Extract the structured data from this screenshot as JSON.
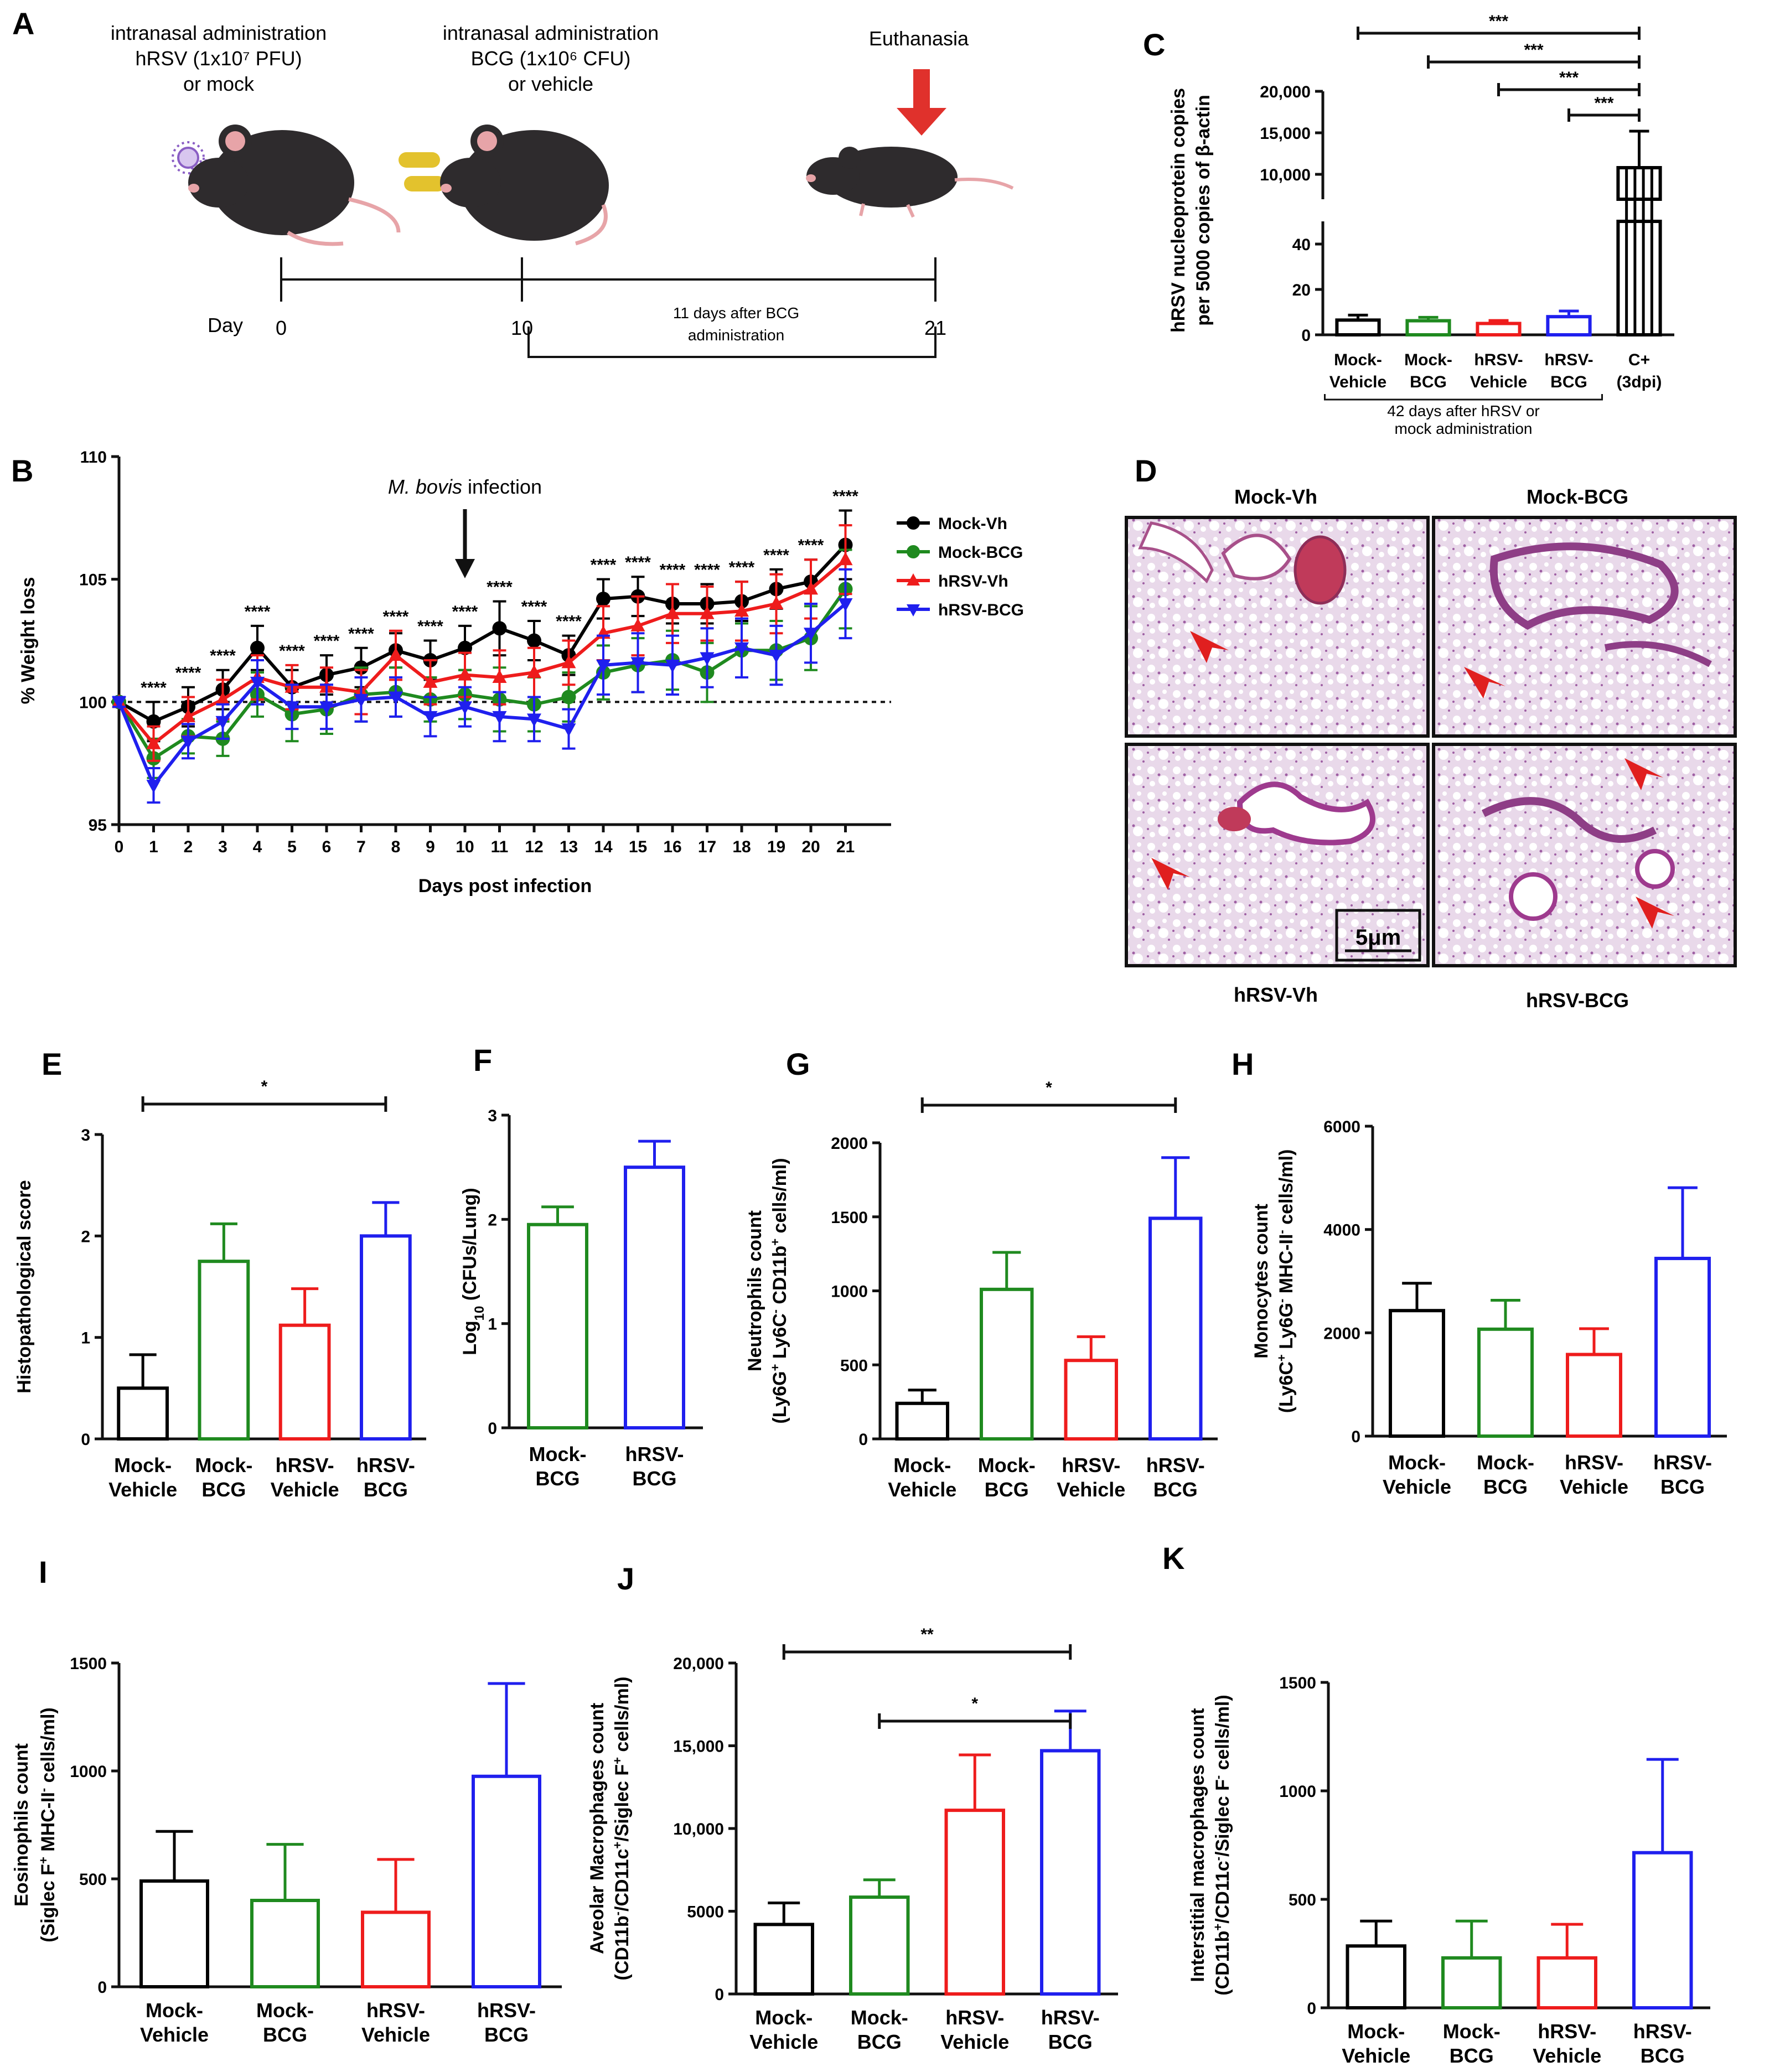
{
  "panel_letters": [
    "A",
    "B",
    "C",
    "D",
    "E",
    "F",
    "G",
    "H",
    "I",
    "J",
    "K"
  ],
  "colors": {
    "Mock-Vh": "#000000",
    "Mock-BCG": "#1f8a1f",
    "hRSV-Vh": "#ee1c1c",
    "hRSV-BCG": "#1f1fee"
  },
  "panel_A": {
    "step1": [
      "intranasal administration",
      "hRSV  (1x10⁷ PFU)",
      "or mock"
    ],
    "step2": [
      "intranasal administration",
      "BCG  (1x10⁶ CFU)",
      "or vehicle"
    ],
    "step3": "Euthanasia",
    "day_label": "Day",
    "days": [
      "0",
      "10",
      "21"
    ],
    "interval": [
      "11 days after BCG",
      "administration"
    ]
  },
  "panel_D": {
    "labels": [
      "Mock-Vh",
      "Mock-BCG",
      "hRSV-Vh",
      "hRSV-BCG"
    ],
    "scale": "5μm"
  },
  "chart_data": [
    {
      "id": "B",
      "type": "line",
      "title": "",
      "xlabel": "Days post infection",
      "ylabel": "% Weight loss",
      "x": [
        0,
        1,
        2,
        3,
        4,
        5,
        6,
        7,
        8,
        9,
        10,
        11,
        12,
        13,
        14,
        15,
        16,
        17,
        18,
        19,
        20,
        21
      ],
      "xticks": [
        "0",
        "1",
        "2",
        "3",
        "4",
        "5",
        "6",
        "7",
        "8",
        "9",
        "10",
        "11",
        "12",
        "13",
        "14",
        "15",
        "16",
        "17",
        "18",
        "19",
        "20",
        "21"
      ],
      "ylim": [
        95,
        110
      ],
      "yticks": [
        "95",
        "100",
        "105",
        "110"
      ],
      "reference_line": 100,
      "annotation": {
        "italic": "M. bovis",
        "text": " infection",
        "at_day": 10
      },
      "significance": [
        "",
        "****",
        "****",
        "****",
        "****",
        "****",
        "****",
        "****",
        "****",
        "****",
        "****",
        "****",
        "****",
        "****",
        "****",
        "****",
        "****",
        "****",
        "****",
        "****",
        "****",
        "****"
      ],
      "legend_position": "right",
      "series": [
        {
          "name": "Mock-Vh",
          "marker": "circle",
          "values": [
            100,
            99.2,
            99.8,
            100.5,
            102.2,
            100.6,
            101.1,
            101.4,
            102.1,
            101.7,
            102.2,
            103.0,
            102.5,
            101.9,
            104.2,
            104.3,
            104.0,
            104.0,
            104.1,
            104.6,
            104.9,
            106.4
          ],
          "errors": [
            0.2,
            0.8,
            0.8,
            0.8,
            0.9,
            0.7,
            0.8,
            0.8,
            0.7,
            0.8,
            0.9,
            1.1,
            0.8,
            0.8,
            0.8,
            0.8,
            0.8,
            0.8,
            0.8,
            0.8,
            0.9,
            1.4
          ]
        },
        {
          "name": "Mock-BCG",
          "marker": "circle",
          "values": [
            100,
            97.7,
            98.6,
            98.5,
            100.3,
            99.5,
            99.7,
            100.3,
            100.4,
            100.1,
            100.3,
            100.1,
            99.9,
            100.2,
            101.2,
            101.5,
            101.7,
            101.2,
            102.1,
            102.1,
            102.6,
            104.6
          ],
          "errors": [
            0.2,
            0.8,
            0.7,
            0.7,
            0.9,
            1.1,
            1.0,
            1.1,
            1.0,
            0.9,
            1.0,
            1.3,
            1.1,
            1.0,
            1.1,
            1.1,
            1.2,
            1.2,
            1.1,
            1.2,
            1.3,
            1.6
          ]
        },
        {
          "name": "hRSV-Vh",
          "marker": "triangle-up",
          "values": [
            100,
            98.3,
            99.4,
            100.1,
            101.0,
            100.6,
            100.6,
            100.4,
            101.9,
            100.8,
            101.1,
            101.0,
            101.2,
            101.6,
            102.8,
            103.1,
            103.6,
            103.6,
            103.7,
            104.0,
            104.6,
            105.8
          ],
          "errors": [
            0.2,
            0.7,
            0.8,
            0.8,
            0.9,
            0.9,
            0.8,
            0.9,
            1.0,
            0.9,
            0.9,
            1.1,
            1.0,
            0.9,
            1.1,
            1.2,
            1.2,
            1.1,
            1.2,
            1.2,
            1.2,
            1.4
          ]
        },
        {
          "name": "hRSV-BCG",
          "marker": "triangle-down",
          "values": [
            100,
            96.6,
            98.4,
            99.2,
            100.8,
            99.8,
            99.8,
            100.1,
            100.2,
            99.4,
            99.8,
            99.4,
            99.3,
            98.9,
            101.5,
            101.6,
            101.5,
            101.8,
            102.2,
            101.9,
            102.8,
            104.0
          ],
          "errors": [
            0.2,
            0.7,
            0.7,
            0.7,
            0.9,
            0.9,
            0.9,
            0.9,
            0.8,
            0.8,
            0.8,
            1.0,
            0.9,
            0.8,
            1.2,
            1.2,
            1.2,
            1.2,
            1.2,
            1.2,
            1.2,
            1.4
          ]
        }
      ]
    },
    {
      "id": "C",
      "type": "bar",
      "title": "",
      "ylabel": [
        "hRSV nucleoprotein copies",
        "per 5000 copies of β-actin"
      ],
      "categories": [
        [
          "Mock-",
          "Vehicle"
        ],
        [
          "Mock-",
          "BCG"
        ],
        [
          "hRSV-",
          "Vehicle"
        ],
        [
          "hRSV-",
          "BCG"
        ],
        [
          "C+",
          "(3dpi)"
        ]
      ],
      "values": [
        6.5,
        6.2,
        5.0,
        8.0,
        10800
      ],
      "errors": [
        2.2,
        1.5,
        1.3,
        2.5,
        4400
      ],
      "colors": [
        "#000000",
        "#1f8a1f",
        "#ee1c1c",
        "#1f1fee",
        "#000000"
      ],
      "axis_break": {
        "lower": [
          0,
          50
        ],
        "upper": [
          7000,
          20000
        ]
      },
      "yticks_lower": [
        "0",
        "20",
        "40"
      ],
      "yticks_upper": [
        "10,000",
        "15,000",
        "20,000"
      ],
      "footnote": [
        "42 days after hRSV or",
        "mock administration"
      ],
      "significance": [
        {
          "from": 0,
          "to": 4,
          "label": "***"
        },
        {
          "from": 1,
          "to": 4,
          "label": "***"
        },
        {
          "from": 2,
          "to": 4,
          "label": "***"
        },
        {
          "from": 3,
          "to": 4,
          "label": "***"
        }
      ]
    },
    {
      "id": "E",
      "type": "bar",
      "title": "",
      "ylabel": "Histopathological score",
      "categories": [
        [
          "Mock-",
          "Vehicle"
        ],
        [
          "Mock-",
          "BCG"
        ],
        [
          "hRSV-",
          "Vehicle"
        ],
        [
          "hRSV-",
          "BCG"
        ]
      ],
      "values": [
        0.5,
        1.75,
        1.12,
        2.0
      ],
      "errors": [
        0.33,
        0.37,
        0.36,
        0.33
      ],
      "colors": [
        "#000000",
        "#1f8a1f",
        "#ee1c1c",
        "#1f1fee"
      ],
      "ylim": [
        0,
        3
      ],
      "yticks": [
        "0",
        "1",
        "2",
        "3"
      ],
      "significance": [
        {
          "from": 0,
          "to": 3,
          "label": "*"
        }
      ]
    },
    {
      "id": "F",
      "type": "bar",
      "title": "",
      "ylabel": {
        "pre": "Log",
        "sub": "10",
        "post": " (CFUs/Lung)"
      },
      "categories": [
        [
          "Mock-",
          "BCG"
        ],
        [
          "hRSV-",
          "BCG"
        ]
      ],
      "values": [
        1.95,
        2.5
      ],
      "errors": [
        0.17,
        0.25
      ],
      "colors": [
        "#1f8a1f",
        "#1f1fee"
      ],
      "ylim": [
        0,
        3
      ],
      "yticks": [
        "0",
        "1",
        "2",
        "3"
      ],
      "significance": []
    },
    {
      "id": "G",
      "type": "bar",
      "title": "",
      "ylabel": {
        "line1": "Neutrophils count",
        "parts": [
          [
            "(Ly6G",
            ""
          ],
          [
            "+",
            true
          ],
          [
            " Ly6C",
            ""
          ],
          [
            "-",
            true
          ],
          [
            " CD11b",
            ""
          ],
          [
            "+",
            true
          ],
          [
            " cells/ml)",
            ""
          ]
        ]
      },
      "categories": [
        [
          "Mock-",
          "Vehicle"
        ],
        [
          "Mock-",
          "BCG"
        ],
        [
          "hRSV-",
          "Vehicle"
        ],
        [
          "hRSV-",
          "BCG"
        ]
      ],
      "values": [
        240,
        1010,
        530,
        1490
      ],
      "errors": [
        90,
        250,
        160,
        410
      ],
      "colors": [
        "#000000",
        "#1f8a1f",
        "#ee1c1c",
        "#1f1fee"
      ],
      "ylim": [
        0,
        2000
      ],
      "yticks": [
        "0",
        "500",
        "1000",
        "1500",
        "2000"
      ],
      "significance": [
        {
          "from": 0,
          "to": 3,
          "label": "*"
        }
      ]
    },
    {
      "id": "H",
      "type": "bar",
      "title": "",
      "ylabel": {
        "line1": "Monocytes count",
        "parts": [
          [
            "(Ly6C",
            ""
          ],
          [
            "+",
            true
          ],
          [
            " Ly6G",
            ""
          ],
          [
            "-",
            true
          ],
          [
            " MHC-II",
            ""
          ],
          [
            "-",
            true
          ],
          [
            " cells/ml)",
            ""
          ]
        ]
      },
      "categories": [
        [
          "Mock-",
          "Vehicle"
        ],
        [
          "Mock-",
          "BCG"
        ],
        [
          "hRSV-",
          "Vehicle"
        ],
        [
          "hRSV-",
          "BCG"
        ]
      ],
      "values": [
        2430,
        2070,
        1580,
        3440
      ],
      "errors": [
        530,
        560,
        500,
        1370
      ],
      "colors": [
        "#000000",
        "#1f8a1f",
        "#ee1c1c",
        "#1f1fee"
      ],
      "ylim": [
        0,
        6000
      ],
      "yticks": [
        "0",
        "2000",
        "4000",
        "6000"
      ],
      "significance": []
    },
    {
      "id": "I",
      "type": "bar",
      "title": "",
      "ylabel": {
        "line1": "Eosinophils count",
        "parts": [
          [
            "(Siglec F",
            ""
          ],
          [
            "+",
            true
          ],
          [
            " MHC-II",
            ""
          ],
          [
            "-",
            true
          ],
          [
            " cells/ml)",
            ""
          ]
        ]
      },
      "categories": [
        [
          "Mock-",
          "Vehicle"
        ],
        [
          "Mock-",
          "BCG"
        ],
        [
          "hRSV-",
          "Vehicle"
        ],
        [
          "hRSV-",
          "BCG"
        ]
      ],
      "values": [
        490,
        400,
        345,
        975
      ],
      "errors": [
        230,
        260,
        245,
        430
      ],
      "colors": [
        "#000000",
        "#1f8a1f",
        "#ee1c1c",
        "#1f1fee"
      ],
      "ylim": [
        0,
        1500
      ],
      "yticks": [
        "0",
        "500",
        "1000",
        "1500"
      ],
      "significance": []
    },
    {
      "id": "J",
      "type": "bar",
      "title": "",
      "ylabel": {
        "line1": "Aveolar Macrophages count",
        "parts": [
          [
            "(CD11b",
            ""
          ],
          [
            "-",
            true
          ],
          [
            "/CD11c",
            ""
          ],
          [
            "+",
            true
          ],
          [
            "/Siglec F",
            ""
          ],
          [
            "+",
            true
          ],
          [
            " cells/ml)",
            ""
          ]
        ]
      },
      "categories": [
        [
          "Mock-",
          "Vehicle"
        ],
        [
          "Mock-",
          "BCG"
        ],
        [
          "hRSV-",
          "Vehicle"
        ],
        [
          "hRSV-",
          "BCG"
        ]
      ],
      "values": [
        4200,
        5850,
        11100,
        14700
      ],
      "errors": [
        1300,
        1050,
        3350,
        2400
      ],
      "colors": [
        "#000000",
        "#1f8a1f",
        "#ee1c1c",
        "#1f1fee"
      ],
      "ylim": [
        0,
        20000
      ],
      "yticks": [
        "0",
        "5000",
        "10,000",
        "15,000",
        "20,000"
      ],
      "significance": [
        {
          "from": 0,
          "to": 3,
          "label": "**"
        },
        {
          "from": 1,
          "to": 3,
          "label": "*"
        }
      ]
    },
    {
      "id": "K",
      "type": "bar",
      "title": "",
      "ylabel": {
        "line1": "Interstitial macrophages count",
        "parts": [
          [
            "(CD11b",
            ""
          ],
          [
            "+",
            true
          ],
          [
            "/CD11c",
            ""
          ],
          [
            "-",
            true
          ],
          [
            "/Siglec F",
            ""
          ],
          [
            "-",
            true
          ],
          [
            " cells/ml)",
            ""
          ]
        ]
      },
      "categories": [
        [
          "Mock-",
          "Vehicle"
        ],
        [
          "Mock-",
          "BCG"
        ],
        [
          "hRSV-",
          "Vehicle"
        ],
        [
          "hRSV-",
          "BCG"
        ]
      ],
      "values": [
        285,
        230,
        230,
        715
      ],
      "errors": [
        115,
        170,
        155,
        430
      ],
      "colors": [
        "#000000",
        "#1f8a1f",
        "#ee1c1c",
        "#1f1fee"
      ],
      "ylim": [
        0,
        1500
      ],
      "yticks": [
        "0",
        "500",
        "1000",
        "1500"
      ],
      "significance": []
    }
  ]
}
